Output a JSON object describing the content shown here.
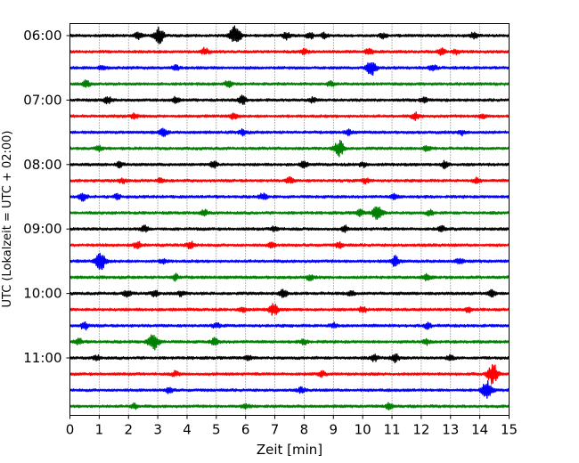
{
  "chart_data": {
    "type": "line",
    "title": "",
    "xlabel": "Zeit  [min]",
    "ylabel": "UTC (Lokalzeit = UTC + 02:00)",
    "xlim": [
      0,
      15
    ],
    "x_ticks": [
      "0",
      "1",
      "2",
      "3",
      "4",
      "5",
      "6",
      "7",
      "8",
      "9",
      "10",
      "11",
      "12",
      "13",
      "14",
      "15"
    ],
    "y_ticks": [
      "06:00",
      "07:00",
      "08:00",
      "09:00",
      "10:00",
      "11:00"
    ],
    "grid": "vertical dotted at each minute",
    "trace_colors": [
      "#000000",
      "#ff0000",
      "#0000ff",
      "#008000"
    ],
    "series": [
      {
        "start": "06:00",
        "color": "#000000",
        "events": [
          {
            "t": 2.35,
            "a": 0.35
          },
          {
            "t": 3.05,
            "a": 0.75
          },
          {
            "t": 5.65,
            "a": 1.0
          },
          {
            "t": 7.4,
            "a": 0.3
          },
          {
            "t": 8.2,
            "a": 0.3
          },
          {
            "t": 8.7,
            "a": 0.25
          },
          {
            "t": 10.7,
            "a": 0.25
          },
          {
            "t": 13.8,
            "a": 0.3
          }
        ]
      },
      {
        "start": "06:15",
        "color": "#ff0000",
        "events": [
          {
            "t": 4.6,
            "a": 0.35
          },
          {
            "t": 8.0,
            "a": 0.25
          },
          {
            "t": 10.2,
            "a": 0.35
          },
          {
            "t": 12.7,
            "a": 0.3
          },
          {
            "t": 13.2,
            "a": 0.25
          }
        ]
      },
      {
        "start": "06:30",
        "color": "#0000ff",
        "events": [
          {
            "t": 1.1,
            "a": 0.25
          },
          {
            "t": 3.6,
            "a": 0.25
          },
          {
            "t": 10.3,
            "a": 0.75
          },
          {
            "t": 12.4,
            "a": 0.3
          }
        ]
      },
      {
        "start": "06:45",
        "color": "#008000",
        "events": [
          {
            "t": 0.55,
            "a": 0.3
          },
          {
            "t": 5.4,
            "a": 0.3
          },
          {
            "t": 8.9,
            "a": 0.25
          }
        ]
      },
      {
        "start": "07:00",
        "color": "#000000",
        "events": [
          {
            "t": 1.3,
            "a": 0.35
          },
          {
            "t": 3.6,
            "a": 0.3
          },
          {
            "t": 5.9,
            "a": 0.4
          },
          {
            "t": 8.3,
            "a": 0.25
          },
          {
            "t": 12.1,
            "a": 0.25
          }
        ]
      },
      {
        "start": "07:15",
        "color": "#ff0000",
        "events": [
          {
            "t": 2.2,
            "a": 0.25
          },
          {
            "t": 5.6,
            "a": 0.3
          },
          {
            "t": 11.8,
            "a": 0.35
          },
          {
            "t": 14.1,
            "a": 0.25
          }
        ]
      },
      {
        "start": "07:30",
        "color": "#0000ff",
        "events": [
          {
            "t": 3.2,
            "a": 0.4
          },
          {
            "t": 5.9,
            "a": 0.3
          },
          {
            "t": 9.5,
            "a": 0.25
          },
          {
            "t": 13.4,
            "a": 0.25
          }
        ]
      },
      {
        "start": "07:45",
        "color": "#008000",
        "events": [
          {
            "t": 1.0,
            "a": 0.25
          },
          {
            "t": 9.2,
            "a": 0.8
          },
          {
            "t": 12.2,
            "a": 0.25
          }
        ]
      },
      {
        "start": "08:00",
        "color": "#000000",
        "events": [
          {
            "t": 1.7,
            "a": 0.25
          },
          {
            "t": 4.9,
            "a": 0.35
          },
          {
            "t": 8.0,
            "a": 0.3
          },
          {
            "t": 10.0,
            "a": 0.25
          },
          {
            "t": 12.8,
            "a": 0.35
          }
        ]
      },
      {
        "start": "08:15",
        "color": "#ff0000",
        "events": [
          {
            "t": 1.8,
            "a": 0.25
          },
          {
            "t": 3.1,
            "a": 0.25
          },
          {
            "t": 7.5,
            "a": 0.3
          },
          {
            "t": 10.1,
            "a": 0.25
          },
          {
            "t": 13.9,
            "a": 0.25
          }
        ]
      },
      {
        "start": "08:30",
        "color": "#0000ff",
        "events": [
          {
            "t": 0.45,
            "a": 0.4
          },
          {
            "t": 1.6,
            "a": 0.25
          },
          {
            "t": 6.6,
            "a": 0.3
          },
          {
            "t": 11.1,
            "a": 0.25
          }
        ]
      },
      {
        "start": "08:45",
        "color": "#008000",
        "events": [
          {
            "t": 4.6,
            "a": 0.3
          },
          {
            "t": 9.9,
            "a": 0.3
          },
          {
            "t": 10.5,
            "a": 0.8
          },
          {
            "t": 12.3,
            "a": 0.25
          }
        ]
      },
      {
        "start": "09:00",
        "color": "#000000",
        "events": [
          {
            "t": 2.55,
            "a": 0.3
          },
          {
            "t": 7.0,
            "a": 0.25
          },
          {
            "t": 9.4,
            "a": 0.25
          },
          {
            "t": 12.7,
            "a": 0.25
          }
        ]
      },
      {
        "start": "09:15",
        "color": "#ff0000",
        "events": [
          {
            "t": 2.3,
            "a": 0.35
          },
          {
            "t": 4.1,
            "a": 0.4
          },
          {
            "t": 6.9,
            "a": 0.25
          },
          {
            "t": 9.2,
            "a": 0.25
          }
        ]
      },
      {
        "start": "09:30",
        "color": "#0000ff",
        "events": [
          {
            "t": 1.05,
            "a": 0.9
          },
          {
            "t": 3.2,
            "a": 0.25
          },
          {
            "t": 11.1,
            "a": 0.5
          },
          {
            "t": 13.3,
            "a": 0.25
          }
        ]
      },
      {
        "start": "09:45",
        "color": "#008000",
        "events": [
          {
            "t": 3.6,
            "a": 0.3
          },
          {
            "t": 8.2,
            "a": 0.25
          },
          {
            "t": 12.2,
            "a": 0.35
          }
        ]
      },
      {
        "start": "10:00",
        "color": "#000000",
        "events": [
          {
            "t": 1.95,
            "a": 0.3
          },
          {
            "t": 2.9,
            "a": 0.3
          },
          {
            "t": 3.8,
            "a": 0.25
          },
          {
            "t": 7.3,
            "a": 0.4
          },
          {
            "t": 9.6,
            "a": 0.25
          },
          {
            "t": 14.4,
            "a": 0.35
          }
        ]
      },
      {
        "start": "10:15",
        "color": "#ff0000",
        "events": [
          {
            "t": 5.9,
            "a": 0.25
          },
          {
            "t": 6.95,
            "a": 0.6
          },
          {
            "t": 10.0,
            "a": 0.25
          },
          {
            "t": 13.6,
            "a": 0.25
          }
        ]
      },
      {
        "start": "10:30",
        "color": "#0000ff",
        "events": [
          {
            "t": 0.5,
            "a": 0.35
          },
          {
            "t": 5.0,
            "a": 0.25
          },
          {
            "t": 9.0,
            "a": 0.25
          },
          {
            "t": 12.2,
            "a": 0.3
          }
        ]
      },
      {
        "start": "10:45",
        "color": "#008000",
        "events": [
          {
            "t": 0.3,
            "a": 0.3
          },
          {
            "t": 2.85,
            "a": 0.9
          },
          {
            "t": 4.95,
            "a": 0.35
          },
          {
            "t": 8.0,
            "a": 0.25
          },
          {
            "t": 12.2,
            "a": 0.25
          }
        ]
      },
      {
        "start": "11:00",
        "color": "#000000",
        "events": [
          {
            "t": 0.9,
            "a": 0.25
          },
          {
            "t": 6.1,
            "a": 0.25
          },
          {
            "t": 10.4,
            "a": 0.3
          },
          {
            "t": 11.1,
            "a": 0.4
          },
          {
            "t": 13.0,
            "a": 0.25
          }
        ]
      },
      {
        "start": "11:15",
        "color": "#ff0000",
        "events": [
          {
            "t": 3.6,
            "a": 0.25
          },
          {
            "t": 8.6,
            "a": 0.25
          },
          {
            "t": 14.45,
            "a": 1.0
          }
        ]
      },
      {
        "start": "11:30",
        "color": "#0000ff",
        "events": [
          {
            "t": 3.4,
            "a": 0.3
          },
          {
            "t": 7.9,
            "a": 0.25
          },
          {
            "t": 14.25,
            "a": 0.95
          }
        ]
      },
      {
        "start": "11:45",
        "color": "#008000",
        "events": [
          {
            "t": 2.2,
            "a": 0.25
          },
          {
            "t": 6.0,
            "a": 0.25
          },
          {
            "t": 10.9,
            "a": 0.25
          }
        ]
      }
    ]
  }
}
